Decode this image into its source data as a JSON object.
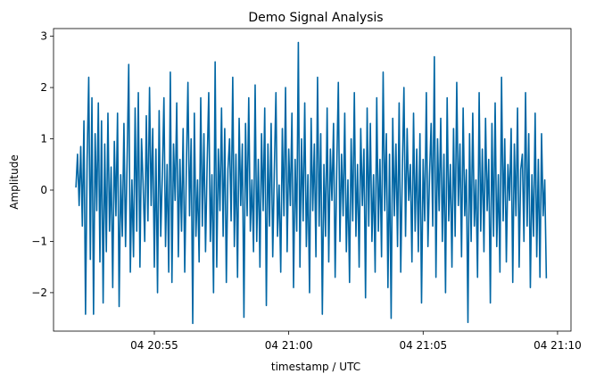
{
  "chart_data": {
    "type": "line",
    "title": "Demo Signal Analysis",
    "xlabel": "timestamp / UTC",
    "ylabel": "Amplitude",
    "xlim": [
      "04 20:51:15",
      "04 21:10:30"
    ],
    "ylim": [
      -2.75,
      3.15
    ],
    "x_ticks": [
      {
        "label": "04 20:55",
        "value": "04 20:55:00"
      },
      {
        "label": "04 21:00",
        "value": "04 21:00:00"
      },
      {
        "label": "04 21:05",
        "value": "04 21:05:00"
      },
      {
        "label": "04 21:10",
        "value": "04 21:10:00"
      }
    ],
    "y_ticks": [
      {
        "label": "−2",
        "value": -2
      },
      {
        "label": "−1",
        "value": -1
      },
      {
        "label": "0",
        "value": 0
      },
      {
        "label": "1",
        "value": 1
      },
      {
        "label": "2",
        "value": 2
      },
      {
        "label": "3",
        "value": 3
      }
    ],
    "grid": false,
    "series": [
      {
        "color": "#0066a4",
        "x_start": "04 20:52:05",
        "x_end": "04 21:09:35",
        "values": [
          0.05,
          0.7,
          -0.3,
          0.85,
          -0.7,
          1.35,
          -2.42,
          0.6,
          2.2,
          -1.35,
          1.8,
          -2.42,
          1.1,
          -0.4,
          1.7,
          -1.4,
          1.35,
          -2.2,
          0.9,
          -1.2,
          1.5,
          -0.8,
          0.45,
          -1.9,
          0.95,
          -0.5,
          1.5,
          -2.27,
          0.3,
          -0.9,
          1.3,
          -1.1,
          0.6,
          2.45,
          -1.6,
          0.2,
          -1.3,
          1.6,
          -0.8,
          1.9,
          -1.5,
          1.0,
          0.1,
          -1.0,
          1.45,
          -0.6,
          2.0,
          -0.3,
          1.2,
          -1.5,
          0.8,
          -2.0,
          1.55,
          -0.9,
          0.3,
          1.8,
          -1.1,
          0.5,
          -1.6,
          2.3,
          -1.8,
          0.9,
          -0.2,
          1.7,
          -1.3,
          0.6,
          -0.8,
          1.2,
          -1.6,
          0.4,
          2.1,
          -0.5,
          1.0,
          -2.6,
          1.5,
          -0.9,
          0.2,
          -1.4,
          1.8,
          -0.7,
          1.1,
          -1.2,
          0.5,
          1.9,
          -1.0,
          0.3,
          -2.0,
          2.5,
          -1.5,
          0.8,
          -0.4,
          1.6,
          -0.9,
          1.2,
          -1.8,
          0.4,
          1.0,
          -0.6,
          2.2,
          -1.1,
          0.7,
          -1.7,
          1.4,
          -0.3,
          0.9,
          -2.48,
          1.3,
          -0.5,
          1.8,
          -0.8,
          0.2,
          -1.2,
          2.05,
          -1.0,
          0.6,
          -1.5,
          1.1,
          -0.4,
          1.6,
          -2.25,
          0.9,
          -0.7,
          1.3,
          -1.3,
          0.4,
          1.9,
          -0.9,
          0.1,
          -1.6,
          1.2,
          -0.5,
          2.0,
          -1.2,
          0.8,
          -0.3,
          1.5,
          -1.9,
          0.6,
          -0.8,
          2.88,
          -1.5,
          1.0,
          -0.6,
          1.7,
          -1.1,
          0.3,
          -2.0,
          1.4,
          -0.4,
          0.9,
          -1.3,
          2.2,
          -0.7,
          1.1,
          -2.42,
          0.5,
          -0.9,
          1.6,
          -1.4,
          0.8,
          -0.2,
          1.3,
          -1.7,
          0.4,
          2.1,
          -1.0,
          0.7,
          -0.5,
          1.5,
          -1.2,
          0.2,
          -1.8,
          1.0,
          -0.6,
          1.9,
          -0.9,
          0.5,
          -1.5,
          1.2,
          -0.3,
          0.8,
          -2.1,
          1.6,
          -0.7,
          1.3,
          -1.0,
          0.3,
          -1.6,
          1.8,
          -0.8,
          0.6,
          -1.3,
          2.3,
          -0.4,
          1.1,
          -1.9,
          0.7,
          -2.5,
          1.4,
          -0.5,
          0.9,
          -1.1,
          1.7,
          -1.6,
          0.4,
          2.0,
          -0.9,
          1.2,
          -0.2,
          0.5,
          -1.4,
          1.5,
          -0.8,
          0.8,
          -1.2,
          1.1,
          -2.2,
          0.6,
          -0.6,
          1.9,
          -1.1,
          0.3,
          1.3,
          -0.7,
          2.6,
          -1.7,
          1.0,
          -0.4,
          1.4,
          -1.0,
          0.7,
          -2.0,
          1.8,
          -0.6,
          0.5,
          -1.5,
          1.2,
          -0.9,
          2.1,
          -0.3,
          0.9,
          -1.3,
          1.6,
          -0.5,
          0.4,
          -2.58,
          1.1,
          -1.0,
          1.5,
          -0.7,
          0.2,
          -1.7,
          1.9,
          -0.8,
          0.8,
          -1.2,
          1.4,
          -0.4,
          0.6,
          -2.2,
          1.3,
          -0.9,
          1.7,
          -1.1,
          0.3,
          -1.6,
          2.2,
          -0.6,
          1.0,
          -1.4,
          0.5,
          -0.2,
          1.2,
          -1.8,
          0.9,
          -0.5,
          1.6,
          -1.5,
          0.4,
          0.7,
          -1.0,
          1.9,
          -0.7,
          1.1,
          -1.9,
          0.3,
          -0.9,
          1.5,
          -1.3,
          0.6,
          -1.7,
          1.1,
          -0.5,
          0.2,
          -1.72
        ]
      }
    ]
  }
}
